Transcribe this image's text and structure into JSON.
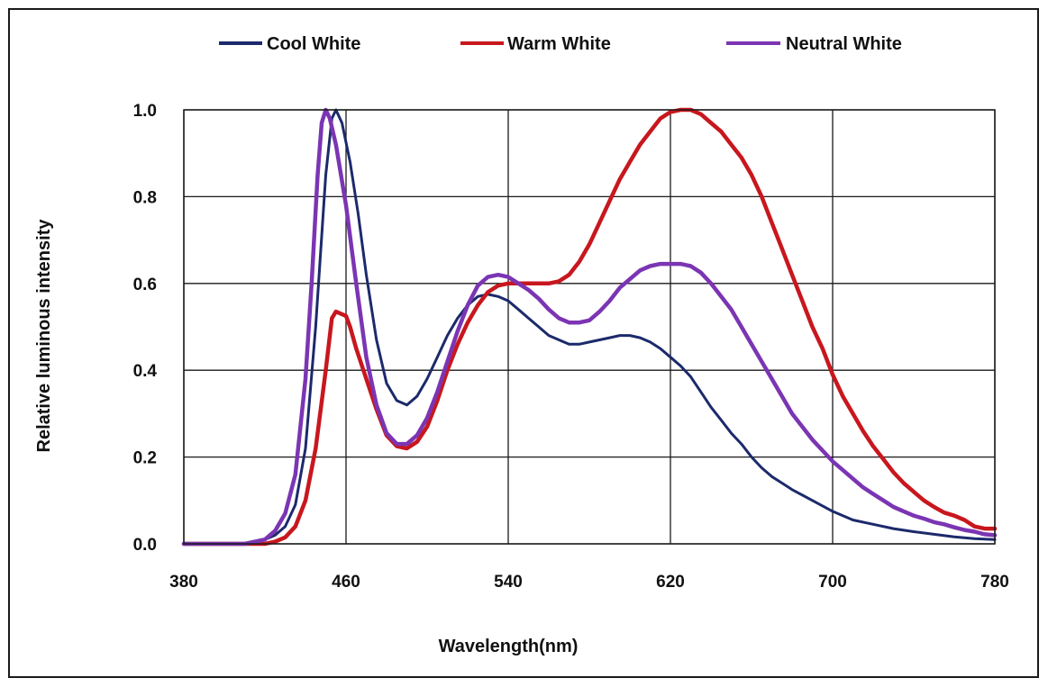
{
  "chart_data": {
    "type": "line",
    "xlabel": "Wavelength(nm)",
    "ylabel": "Relative luminous intensity",
    "xlim": [
      380,
      780
    ],
    "ylim": [
      0,
      1.0
    ],
    "xticks": [
      "380",
      "460",
      "540",
      "620",
      "700",
      "780"
    ],
    "xtick_values": [
      380,
      460,
      540,
      620,
      700,
      780
    ],
    "yticks": [
      "0.0",
      "0.2",
      "0.4",
      "0.6",
      "0.8",
      "1.0"
    ],
    "ytick_values": [
      0,
      0.2,
      0.4,
      0.6,
      0.8,
      1.0
    ],
    "grid": true,
    "legend_position": "top",
    "series": [
      {
        "name": "Cool White",
        "color": "#1c2a6b",
        "points": [
          [
            380,
            0.0
          ],
          [
            400,
            0.0
          ],
          [
            410,
            0.0
          ],
          [
            420,
            0.01
          ],
          [
            425,
            0.02
          ],
          [
            430,
            0.04
          ],
          [
            435,
            0.09
          ],
          [
            440,
            0.22
          ],
          [
            445,
            0.5
          ],
          [
            450,
            0.85
          ],
          [
            453,
            0.98
          ],
          [
            455,
            1.0
          ],
          [
            458,
            0.97
          ],
          [
            462,
            0.88
          ],
          [
            466,
            0.76
          ],
          [
            470,
            0.62
          ],
          [
            475,
            0.47
          ],
          [
            480,
            0.37
          ],
          [
            485,
            0.33
          ],
          [
            490,
            0.32
          ],
          [
            495,
            0.34
          ],
          [
            500,
            0.38
          ],
          [
            505,
            0.43
          ],
          [
            510,
            0.48
          ],
          [
            515,
            0.52
          ],
          [
            520,
            0.55
          ],
          [
            525,
            0.57
          ],
          [
            530,
            0.575
          ],
          [
            535,
            0.57
          ],
          [
            540,
            0.56
          ],
          [
            545,
            0.54
          ],
          [
            550,
            0.52
          ],
          [
            555,
            0.5
          ],
          [
            560,
            0.48
          ],
          [
            565,
            0.47
          ],
          [
            570,
            0.46
          ],
          [
            575,
            0.46
          ],
          [
            580,
            0.465
          ],
          [
            585,
            0.47
          ],
          [
            590,
            0.475
          ],
          [
            595,
            0.48
          ],
          [
            600,
            0.48
          ],
          [
            605,
            0.475
          ],
          [
            610,
            0.465
          ],
          [
            615,
            0.45
          ],
          [
            620,
            0.43
          ],
          [
            625,
            0.41
          ],
          [
            630,
            0.385
          ],
          [
            635,
            0.35
          ],
          [
            640,
            0.315
          ],
          [
            645,
            0.285
          ],
          [
            650,
            0.255
          ],
          [
            655,
            0.23
          ],
          [
            660,
            0.2
          ],
          [
            665,
            0.175
          ],
          [
            670,
            0.155
          ],
          [
            675,
            0.14
          ],
          [
            680,
            0.125
          ],
          [
            690,
            0.1
          ],
          [
            700,
            0.075
          ],
          [
            710,
            0.055
          ],
          [
            720,
            0.045
          ],
          [
            730,
            0.035
          ],
          [
            740,
            0.028
          ],
          [
            750,
            0.022
          ],
          [
            760,
            0.016
          ],
          [
            770,
            0.012
          ],
          [
            780,
            0.01
          ]
        ]
      },
      {
        "name": "Warm White",
        "color": "#c8171e",
        "points": [
          [
            380,
            0.0
          ],
          [
            400,
            0.0
          ],
          [
            420,
            0.0
          ],
          [
            425,
            0.005
          ],
          [
            430,
            0.015
          ],
          [
            435,
            0.04
          ],
          [
            440,
            0.1
          ],
          [
            445,
            0.22
          ],
          [
            450,
            0.4
          ],
          [
            453,
            0.52
          ],
          [
            455,
            0.535
          ],
          [
            460,
            0.525
          ],
          [
            462,
            0.5
          ],
          [
            465,
            0.45
          ],
          [
            470,
            0.38
          ],
          [
            475,
            0.31
          ],
          [
            480,
            0.25
          ],
          [
            485,
            0.225
          ],
          [
            490,
            0.22
          ],
          [
            495,
            0.235
          ],
          [
            500,
            0.27
          ],
          [
            505,
            0.33
          ],
          [
            510,
            0.4
          ],
          [
            515,
            0.46
          ],
          [
            520,
            0.51
          ],
          [
            525,
            0.55
          ],
          [
            530,
            0.58
          ],
          [
            535,
            0.595
          ],
          [
            540,
            0.6
          ],
          [
            545,
            0.6
          ],
          [
            550,
            0.6
          ],
          [
            555,
            0.6
          ],
          [
            560,
            0.6
          ],
          [
            565,
            0.605
          ],
          [
            570,
            0.62
          ],
          [
            575,
            0.65
          ],
          [
            580,
            0.69
          ],
          [
            585,
            0.74
          ],
          [
            590,
            0.79
          ],
          [
            595,
            0.84
          ],
          [
            600,
            0.88
          ],
          [
            605,
            0.92
          ],
          [
            610,
            0.95
          ],
          [
            615,
            0.98
          ],
          [
            620,
            0.995
          ],
          [
            625,
            1.0
          ],
          [
            630,
            1.0
          ],
          [
            635,
            0.99
          ],
          [
            640,
            0.97
          ],
          [
            645,
            0.95
          ],
          [
            650,
            0.92
          ],
          [
            655,
            0.89
          ],
          [
            660,
            0.85
          ],
          [
            665,
            0.8
          ],
          [
            670,
            0.74
          ],
          [
            675,
            0.68
          ],
          [
            680,
            0.62
          ],
          [
            685,
            0.56
          ],
          [
            690,
            0.5
          ],
          [
            695,
            0.45
          ],
          [
            700,
            0.39
          ],
          [
            705,
            0.34
          ],
          [
            710,
            0.3
          ],
          [
            715,
            0.26
          ],
          [
            720,
            0.225
          ],
          [
            725,
            0.195
          ],
          [
            730,
            0.165
          ],
          [
            735,
            0.14
          ],
          [
            740,
            0.12
          ],
          [
            745,
            0.1
          ],
          [
            750,
            0.085
          ],
          [
            755,
            0.072
          ],
          [
            760,
            0.065
          ],
          [
            765,
            0.055
          ],
          [
            770,
            0.04
          ],
          [
            775,
            0.035
          ],
          [
            780,
            0.035
          ]
        ]
      },
      {
        "name": "Neutral White",
        "color": "#7b35b3",
        "points": [
          [
            380,
            0.0
          ],
          [
            400,
            0.0
          ],
          [
            410,
            0.0
          ],
          [
            420,
            0.01
          ],
          [
            425,
            0.03
          ],
          [
            430,
            0.07
          ],
          [
            435,
            0.16
          ],
          [
            440,
            0.38
          ],
          [
            443,
            0.6
          ],
          [
            446,
            0.85
          ],
          [
            448,
            0.97
          ],
          [
            450,
            1.0
          ],
          [
            452,
            0.98
          ],
          [
            455,
            0.92
          ],
          [
            460,
            0.78
          ],
          [
            465,
            0.6
          ],
          [
            470,
            0.43
          ],
          [
            475,
            0.32
          ],
          [
            480,
            0.255
          ],
          [
            485,
            0.23
          ],
          [
            490,
            0.23
          ],
          [
            495,
            0.25
          ],
          [
            500,
            0.29
          ],
          [
            505,
            0.35
          ],
          [
            510,
            0.42
          ],
          [
            515,
            0.49
          ],
          [
            520,
            0.55
          ],
          [
            525,
            0.595
          ],
          [
            530,
            0.615
          ],
          [
            535,
            0.62
          ],
          [
            540,
            0.615
          ],
          [
            545,
            0.6
          ],
          [
            550,
            0.585
          ],
          [
            555,
            0.565
          ],
          [
            560,
            0.54
          ],
          [
            565,
            0.52
          ],
          [
            570,
            0.51
          ],
          [
            575,
            0.51
          ],
          [
            580,
            0.515
          ],
          [
            585,
            0.535
          ],
          [
            590,
            0.56
          ],
          [
            595,
            0.59
          ],
          [
            600,
            0.61
          ],
          [
            605,
            0.63
          ],
          [
            610,
            0.64
          ],
          [
            615,
            0.645
          ],
          [
            620,
            0.645
          ],
          [
            625,
            0.645
          ],
          [
            630,
            0.64
          ],
          [
            635,
            0.625
          ],
          [
            640,
            0.6
          ],
          [
            645,
            0.57
          ],
          [
            650,
            0.54
          ],
          [
            655,
            0.5
          ],
          [
            660,
            0.46
          ],
          [
            665,
            0.42
          ],
          [
            670,
            0.38
          ],
          [
            675,
            0.34
          ],
          [
            680,
            0.3
          ],
          [
            685,
            0.27
          ],
          [
            690,
            0.24
          ],
          [
            695,
            0.215
          ],
          [
            700,
            0.19
          ],
          [
            705,
            0.17
          ],
          [
            710,
            0.15
          ],
          [
            715,
            0.13
          ],
          [
            720,
            0.115
          ],
          [
            725,
            0.1
          ],
          [
            730,
            0.085
          ],
          [
            735,
            0.075
          ],
          [
            740,
            0.065
          ],
          [
            745,
            0.058
          ],
          [
            750,
            0.05
          ],
          [
            755,
            0.045
          ],
          [
            760,
            0.038
          ],
          [
            765,
            0.032
          ],
          [
            770,
            0.028
          ],
          [
            775,
            0.022
          ],
          [
            780,
            0.02
          ]
        ]
      }
    ]
  }
}
